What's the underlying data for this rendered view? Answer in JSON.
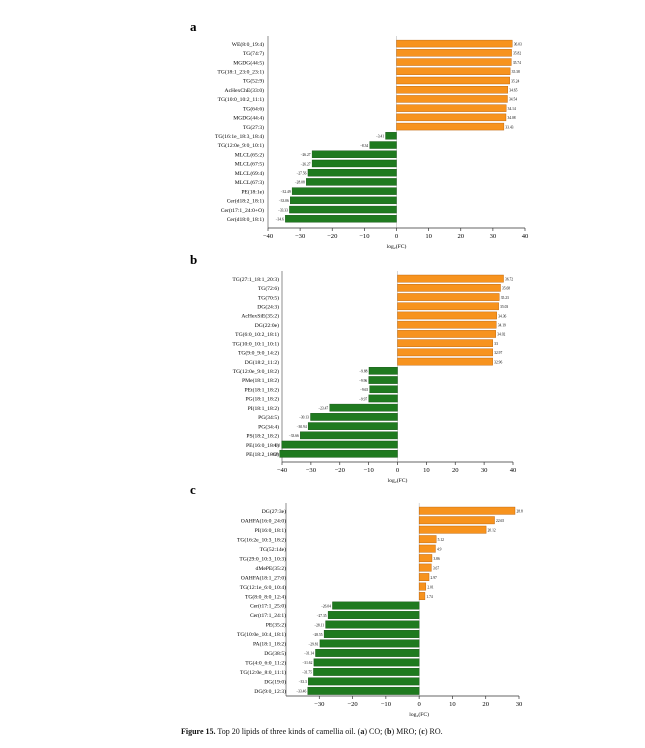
{
  "caption": {
    "figure_label": "Figure 15.",
    "text_before": " Top 20 lipids of three kinds of camellia oil. (",
    "a_letter": "a",
    "a_text": ") CO; (",
    "b_letter": "b",
    "b_text": ") MRO; (",
    "c_letter": "c",
    "c_text": ") RO."
  },
  "colors": {
    "positive": "#f7931e",
    "negative": "#1f7a1f"
  },
  "chart_data": [
    {
      "type": "bar",
      "orientation": "horizontal",
      "panel_label": "a",
      "xlabel": "log₂(FC)",
      "xlim": [
        -40,
        40
      ],
      "xticks": [
        -40,
        -30,
        -20,
        -10,
        0,
        10,
        20,
        30,
        40
      ],
      "categories": [
        "WE(8:0_19:4)",
        "TG(74:7)",
        "MGDG(44:5)",
        "TG(18:1_23:0_23:1)",
        "TG(52:9)",
        "AcHexChE(33:0)",
        "TG(10:0_10:2_11:1)",
        "TG(64:6)",
        "MGDG(44:4)",
        "TG(27:3)",
        "TG(16:1e_18:3_18:4)",
        "TG(12:0e_9:0_10:1)",
        "MLCL(65:2)",
        "MLCL(67:5)",
        "MLCL(69:4)",
        "MLCL(67:3)",
        "PE(18:1e)",
        "Cer(d18:2_18:1)",
        "Cer(t17:1_24:0+O)",
        "Cer(d18:0_18:1)"
      ],
      "values": [
        36.03,
        35.82,
        35.74,
        35.38,
        35.24,
        34.65,
        34.54,
        34.14,
        34.08,
        33.43,
        -3.41,
        -8.34,
        -26.27,
        -26.27,
        -27.56,
        -28.08,
        -32.49,
        -33.06,
        -33.33,
        -34.6
      ],
      "value_labels": [
        "36.03",
        "35.82",
        "35.74",
        "35.38",
        "35.24",
        "34.65",
        "34.54",
        "34.14",
        "34.08",
        "33.43",
        "−3.41",
        "−8.34",
        "−26.27",
        "−26.27",
        "−27.56",
        "−28.08",
        "−32.49",
        "−33.06",
        "−33.33",
        "−34.6"
      ]
    },
    {
      "type": "bar",
      "orientation": "horizontal",
      "panel_label": "b",
      "xlabel": "log₂(FC)",
      "xlim": [
        -40,
        40
      ],
      "xticks": [
        -40,
        -30,
        -20,
        -10,
        0,
        10,
        20,
        30,
        40
      ],
      "categories": [
        "TG(27:1_18:1_20:3)",
        "TG(72:6)",
        "TG(70:5)",
        "DG(24:3)",
        "AcHexSiE(35:2)",
        "DG(22:0e)",
        "TG(6:0_10:2_18:1)",
        "TG(10:0_10:1_10:1)",
        "TG(9:0_9:0_14:2)",
        "DG(18:2_11:2)",
        "TG(12:0e_9:0_18:2)",
        "PMe(18:1_18:2)",
        "PEt(18:1_18:2)",
        "PG(18:1_18:2)",
        "PI(18:1_18:2)",
        "PG(34:5)",
        "PG(34:4)",
        "PS(18:2_18:2)",
        "PE(16:0_18:1)",
        "PE(18:2_18:2)"
      ],
      "values": [
        36.72,
        35.68,
        35.23,
        35.03,
        34.36,
        34.19,
        34.02,
        33.0,
        32.97,
        32.96,
        -9.88,
        -9.96,
        -9.65,
        -9.97,
        -23.47,
        -30.13,
        -30.94,
        -33.66,
        -40.1,
        -40.8
      ],
      "value_labels": [
        "36.72",
        "35.68",
        "35.23",
        "35.03",
        "34.36",
        "34.19",
        "34.02",
        "33",
        "32.97",
        "32.96",
        "−9.88",
        "−9.96",
        "−9.65",
        "−9.97",
        "−23.47",
        "−30.13",
        "−30.94",
        "−33.66",
        "−40.1",
        "−40.8"
      ]
    },
    {
      "type": "bar",
      "orientation": "horizontal",
      "panel_label": "c",
      "xlabel": "log₂(FC)",
      "xlim": [
        -40,
        30
      ],
      "xticks": [
        -30,
        -20,
        -10,
        0,
        10,
        20,
        30
      ],
      "categories": [
        "DG(27:3e)",
        "OAHFA(16:0_24:0)",
        "PI(16:0_18:1)",
        "TG(16:2e_10:3_18:2)",
        "TG(52:14e)",
        "TG(29:0_10:3_10:3)",
        "dMePE(35:2)",
        "OAHFA(18:1_27:0)",
        "TG(12:1e_6:0_10:4)",
        "TG(8:0_8:0_12:4)",
        "Cer(t17:1_25:0)",
        "Cer(t17:1_24:1)",
        "PE(35:2)",
        "TG(10:0e_10:4_18:1)",
        "PA(18:1_18:2)",
        "DG(38:5)",
        "TG(4:0_6:0_11:2)",
        "TG(12:0e_8:0_11:1)",
        "DG(19:0)",
        "DG(9:0_12:3)"
      ],
      "values": [
        28.8,
        22.65,
        20.12,
        5.12,
        4.9,
        3.86,
        3.67,
        2.97,
        2.01,
        1.74,
        -26.04,
        -27.35,
        -28.11,
        -28.55,
        -29.81,
        -31.14,
        -31.62,
        -31.75,
        -33.3,
        -33.46
      ],
      "value_labels": [
        "28.8",
        "22.65",
        "20.12",
        "5.12",
        "4.9",
        "3.86",
        "3.67",
        "2.97",
        "2.01",
        "1.74",
        "−26.04",
        "−27.35",
        "−28.11",
        "−28.55",
        "−29.81",
        "−31.14",
        "−31.62",
        "−31.75",
        "−33.3",
        "−33.46"
      ]
    }
  ]
}
